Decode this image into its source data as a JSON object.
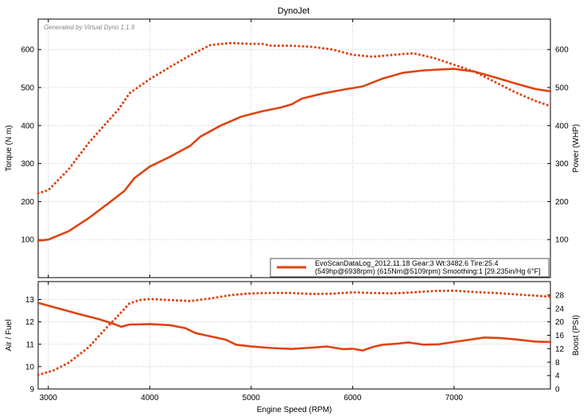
{
  "page": {
    "title": "DynoJet",
    "watermark": "Generated by Virtual Dyno 1.1.9"
  },
  "colors": {
    "series": "#dd4411",
    "grid": "#c8c8c8",
    "axis": "#000000"
  },
  "chart_data": [
    {
      "type": "line",
      "title": "DynoJet",
      "xlabel": "",
      "ylabel": "Torque (N m)",
      "y2label": "Power (WHP)",
      "xlim": [
        2900,
        7950
      ],
      "ylim": [
        0,
        680
      ],
      "y2lim": [
        0,
        680
      ],
      "xticks": [
        3000,
        4000,
        5000,
        6000,
        7000
      ],
      "yticks": [
        100,
        200,
        300,
        400,
        500,
        600
      ],
      "y2ticks": [
        100,
        200,
        300,
        400,
        500,
        600
      ],
      "grid": true,
      "legend_position": "bottom-right",
      "legend": [
        "EvoScanDataLog_2012.11.18 Gear:3 Wt:3482.6 Tire:25.4",
        "(549hp@6938rpm) (615Nm@5109rpm) Smoothing:1 [29.235in/Hg 6°F]"
      ],
      "series": [
        {
          "style": "solid",
          "axis": "right",
          "x": [
            2900,
            3000,
            3200,
            3400,
            3600,
            3750,
            3850,
            4000,
            4200,
            4400,
            4500,
            4700,
            4900,
            5100,
            5300,
            5400,
            5500,
            5700,
            5900,
            6100,
            6300,
            6500,
            6700,
            6900,
            7000,
            7200,
            7400,
            7600,
            7800,
            7950
          ],
          "y": [
            97,
            100,
            122,
            157,
            197,
            228,
            262,
            292,
            318,
            347,
            371,
            400,
            423,
            437,
            448,
            456,
            471,
            484,
            494,
            503,
            524,
            539,
            545,
            548,
            549,
            542,
            527,
            511,
            496,
            490
          ]
        },
        {
          "style": "dotted",
          "axis": "left",
          "x": [
            2900,
            3000,
            3200,
            3400,
            3600,
            3700,
            3800,
            4000,
            4200,
            4400,
            4600,
            4800,
            5000,
            5109,
            5200,
            5400,
            5600,
            5800,
            6000,
            6200,
            6400,
            6600,
            6800,
            7000,
            7200,
            7400,
            7600,
            7800,
            7950
          ],
          "y": [
            222,
            230,
            285,
            355,
            415,
            445,
            485,
            522,
            554,
            585,
            612,
            617,
            615,
            615,
            610,
            610,
            607,
            600,
            586,
            581,
            586,
            590,
            578,
            560,
            542,
            515,
            488,
            465,
            451
          ]
        }
      ]
    },
    {
      "type": "line",
      "xlabel": "Engine Speed (RPM)",
      "ylabel": "Air / Fuel",
      "y2label": "Boost (PSI)",
      "xlim": [
        2900,
        7950
      ],
      "ylim": [
        9,
        13.8
      ],
      "y2lim": [
        0,
        32
      ],
      "xticks": [
        3000,
        4000,
        5000,
        6000,
        7000
      ],
      "yticks": [
        9,
        10,
        11,
        12,
        13
      ],
      "y2ticks": [
        0,
        4,
        8,
        12,
        16,
        20,
        24,
        28
      ],
      "grid": true,
      "series": [
        {
          "style": "solid",
          "axis": "left",
          "x": [
            2900,
            3100,
            3300,
            3500,
            3650,
            3720,
            3800,
            4000,
            4200,
            4350,
            4450,
            4600,
            4750,
            4850,
            5000,
            5200,
            5400,
            5600,
            5750,
            5900,
            6000,
            6100,
            6200,
            6300,
            6450,
            6550,
            6700,
            6850,
            7000,
            7150,
            7300,
            7450,
            7600,
            7800,
            7950
          ],
          "y": [
            12.85,
            12.6,
            12.35,
            12.12,
            11.9,
            11.78,
            11.88,
            11.9,
            11.85,
            11.72,
            11.5,
            11.35,
            11.2,
            10.98,
            10.9,
            10.83,
            10.79,
            10.85,
            10.9,
            10.78,
            10.8,
            10.72,
            10.88,
            10.98,
            11.03,
            11.08,
            10.98,
            11.0,
            11.1,
            11.2,
            11.3,
            11.28,
            11.22,
            11.12,
            11.1
          ]
        },
        {
          "style": "dotted",
          "axis": "right",
          "x": [
            2900,
            3050,
            3200,
            3400,
            3550,
            3700,
            3800,
            3900,
            4000,
            4200,
            4400,
            4600,
            4800,
            5000,
            5200,
            5400,
            5600,
            5800,
            6000,
            6200,
            6400,
            6600,
            6800,
            7000,
            7200,
            7400,
            7600,
            7800,
            7950
          ],
          "y": [
            4.2,
            5.5,
            7.8,
            12.5,
            17.5,
            22.2,
            25.5,
            26.5,
            26.8,
            26.5,
            26.2,
            27.0,
            28.0,
            28.5,
            28.6,
            28.6,
            28.3,
            28.4,
            28.8,
            28.6,
            28.5,
            28.8,
            29.2,
            29.3,
            28.9,
            28.6,
            28.2,
            27.8,
            27.5
          ]
        }
      ]
    }
  ]
}
